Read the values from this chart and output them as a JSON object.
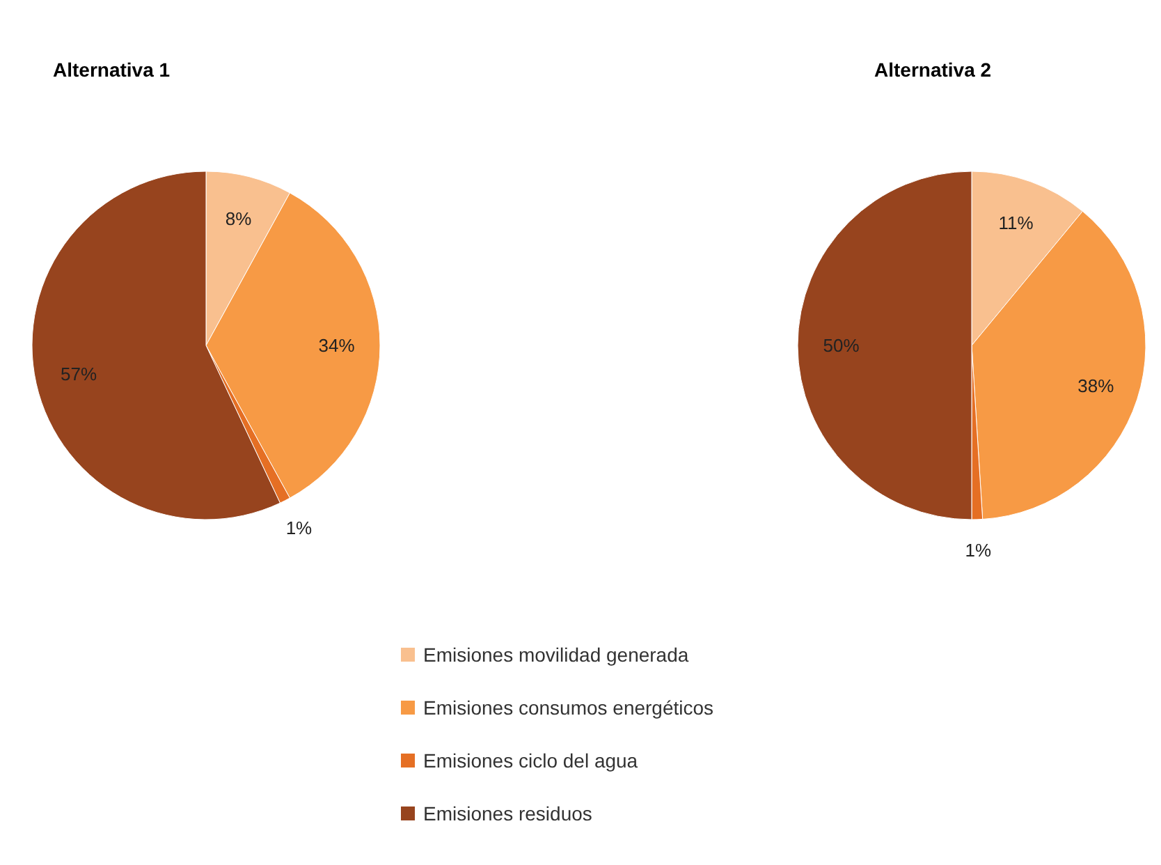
{
  "chart_data": [
    {
      "type": "pie",
      "title": "Alternativa 1",
      "categories": [
        "Emisiones movilidad generada",
        "Emisiones consumos energéticos",
        "Emisiones ciclo del agua",
        "Emisiones residuos"
      ],
      "values": [
        8,
        34,
        1,
        57
      ],
      "value_labels": [
        "8%",
        "34%",
        "1%",
        "57%"
      ],
      "colors": [
        "#f9c08f",
        "#f79a45",
        "#e56f24",
        "#97441e"
      ],
      "legend": "bottom"
    },
    {
      "type": "pie",
      "title": "Alternativa 2",
      "categories": [
        null,
        null,
        null,
        null
      ],
      "values": [
        11,
        38,
        1,
        50
      ],
      "value_labels": [
        "11%",
        "38%",
        "1%",
        "50%"
      ],
      "colors": [
        "#f9c08f",
        "#f79a45",
        "#e56f24",
        "#97441e"
      ]
    }
  ]
}
